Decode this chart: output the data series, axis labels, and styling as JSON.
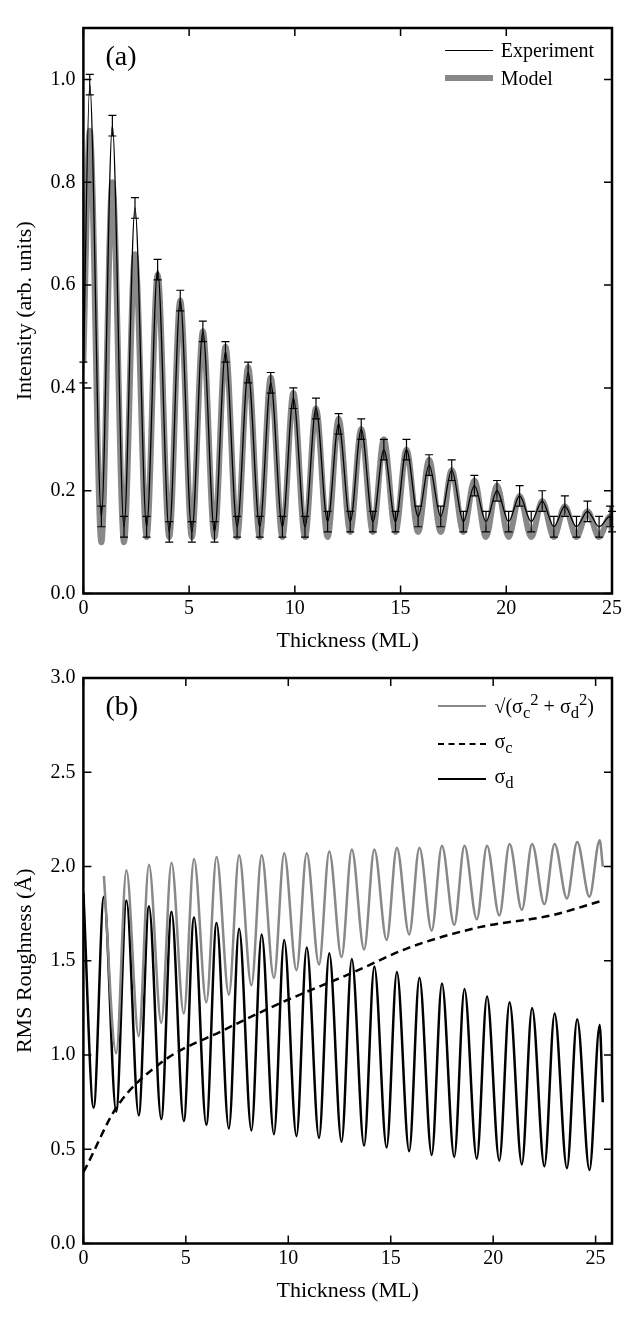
{
  "chart_data": [
    {
      "type": "line",
      "annotations": [
        "(a)"
      ],
      "xlabel": "Thickness (ML)",
      "ylabel": "Intensity (arb. units)",
      "xlim": [
        0,
        25
      ],
      "xticks": [
        0,
        5,
        10,
        15,
        20,
        25
      ],
      "ylim": [
        0,
        1.1
      ],
      "yticks": [
        {
          "value": 0,
          "label": "0.0"
        },
        {
          "value": 0.2,
          "label": "0.2"
        },
        {
          "value": 0.4,
          "label": "0.4"
        },
        {
          "value": 0.6,
          "label": "0.6"
        },
        {
          "value": 0.8,
          "label": "0.8"
        },
        {
          "value": 1,
          "label": "1.0"
        }
      ],
      "legend": "top right",
      "marker": "none",
      "x": [
        0,
        0.3,
        0.85,
        1.37,
        1.92,
        2.44,
        2.99,
        3.51,
        4.06,
        4.58,
        5.13,
        5.65,
        6.2,
        6.72,
        7.27,
        7.79,
        8.34,
        8.86,
        9.41,
        9.93,
        10.48,
        11.0,
        11.55,
        12.07,
        12.62,
        13.14,
        13.69,
        14.21,
        14.76,
        15.28,
        15.83,
        16.35,
        16.9,
        17.42,
        17.97,
        18.49,
        19.04,
        19.56,
        20.11,
        20.63,
        21.18,
        21.7,
        22.25,
        22.77,
        23.32,
        23.84,
        24.39,
        24.91,
        25
      ],
      "series": [
        {
          "name": "Experiment",
          "color": "#000000",
          "values": [
            0.43,
            0.99,
            0.15,
            0.91,
            0.13,
            0.75,
            0.13,
            0.63,
            0.12,
            0.57,
            0.12,
            0.51,
            0.12,
            0.47,
            0.13,
            0.43,
            0.13,
            0.41,
            0.13,
            0.38,
            0.13,
            0.36,
            0.14,
            0.33,
            0.14,
            0.32,
            0.14,
            0.28,
            0.14,
            0.28,
            0.15,
            0.25,
            0.15,
            0.24,
            0.14,
            0.21,
            0.14,
            0.2,
            0.14,
            0.19,
            0.14,
            0.18,
            0.13,
            0.17,
            0.13,
            0.16,
            0.13,
            0.15,
            0.14
          ],
          "errors": [
            0.02,
            0.02,
            0.02,
            0.02,
            0.02,
            0.02,
            0.02,
            0.02,
            0.02,
            0.02,
            0.02,
            0.02,
            0.02,
            0.02,
            0.02,
            0.02,
            0.02,
            0.02,
            0.02,
            0.02,
            0.02,
            0.02,
            0.02,
            0.02,
            0.02,
            0.02,
            0.02,
            0.02,
            0.02,
            0.02,
            0.02,
            0.02,
            0.02,
            0.02,
            0.02,
            0.02,
            0.02,
            0.02,
            0.02,
            0.02,
            0.02,
            0.02,
            0.02,
            0.02,
            0.02,
            0.02,
            0.02,
            0.02,
            0.02
          ]
        },
        {
          "name": "Model",
          "color": "#888888",
          "values": [
            0.45,
            0.9,
            0.1,
            0.8,
            0.1,
            0.66,
            0.11,
            0.62,
            0.11,
            0.57,
            0.11,
            0.51,
            0.11,
            0.48,
            0.11,
            0.44,
            0.11,
            0.42,
            0.11,
            0.39,
            0.11,
            0.36,
            0.11,
            0.34,
            0.12,
            0.32,
            0.12,
            0.3,
            0.12,
            0.28,
            0.12,
            0.26,
            0.12,
            0.24,
            0.12,
            0.22,
            0.11,
            0.21,
            0.11,
            0.19,
            0.11,
            0.18,
            0.11,
            0.17,
            0.11,
            0.16,
            0.11,
            0.15,
            0.12
          ]
        }
      ]
    },
    {
      "type": "line",
      "annotations": [
        "(b)"
      ],
      "xlabel": "Thickness (ML)",
      "ylabel": "RMS Roughness (Å)",
      "xlim": [
        0,
        25.8
      ],
      "xticks": [
        0,
        5,
        10,
        15,
        20,
        25
      ],
      "ylim": [
        0,
        3
      ],
      "yticks": [
        {
          "value": 0,
          "label": "0.0"
        },
        {
          "value": 0.5,
          "label": "0.5"
        },
        {
          "value": 1,
          "label": "1.0"
        },
        {
          "value": 1.5,
          "label": "1.5"
        },
        {
          "value": 2,
          "label": "2.0"
        },
        {
          "value": 2.5,
          "label": "2.5"
        },
        {
          "value": 3,
          "label": "3.0"
        }
      ],
      "legend": "top right",
      "marker": "none",
      "series": [
        {
          "name": "√(σ$_{c}$$^{2}$ + σ$_{d}$$^{2}$)",
          "color": "#888888",
          "x": [
            1.0,
            1.6,
            2.1,
            2.7,
            3.2,
            3.8,
            4.3,
            4.9,
            5.4,
            6.0,
            6.5,
            7.1,
            7.6,
            8.2,
            8.7,
            9.3,
            9.8,
            10.4,
            10.9,
            11.5,
            12.0,
            12.6,
            13.1,
            13.7,
            14.2,
            14.8,
            15.3,
            15.9,
            16.4,
            17.0,
            17.5,
            18.1,
            18.6,
            19.2,
            19.7,
            20.3,
            20.8,
            21.4,
            21.9,
            22.5,
            23.0,
            23.6,
            24.1,
            24.7,
            25.2,
            25.35
          ],
          "values": [
            1.95,
            1.01,
            1.98,
            1.1,
            2.01,
            1.17,
            2.02,
            1.22,
            2.04,
            1.28,
            2.05,
            1.32,
            2.06,
            1.37,
            2.06,
            1.41,
            2.07,
            1.45,
            2.07,
            1.48,
            2.08,
            1.52,
            2.09,
            1.56,
            2.09,
            1.61,
            2.1,
            1.64,
            2.1,
            1.66,
            2.11,
            1.69,
            2.11,
            1.72,
            2.11,
            1.74,
            2.12,
            1.77,
            2.12,
            1.8,
            2.12,
            1.83,
            2.13,
            1.84,
            2.14,
            2.0
          ]
        },
        {
          "name": "σ$_{c}$",
          "color": "#000000",
          "line_style": "dashed",
          "x": [
            0,
            0.15,
            1.6,
            3.8,
            6.8,
            9.5,
            13.2,
            15.9,
            19.4,
            22.8,
            25.35
          ],
          "values": [
            0.38,
            0.41,
            0.72,
            0.96,
            1.13,
            1.27,
            1.44,
            1.57,
            1.68,
            1.74,
            1.82
          ]
        },
        {
          "name": "σ$_{d}$",
          "color": "#000000",
          "x": [
            0,
            0.5,
            1.0,
            1.6,
            2.1,
            2.7,
            3.2,
            3.8,
            4.3,
            4.9,
            5.4,
            6.0,
            6.5,
            7.1,
            7.6,
            8.2,
            8.7,
            9.3,
            9.8,
            10.4,
            10.9,
            11.5,
            12.0,
            12.6,
            13.1,
            13.7,
            14.2,
            14.8,
            15.3,
            15.9,
            16.4,
            17.0,
            17.5,
            18.1,
            18.6,
            19.2,
            19.7,
            20.3,
            20.8,
            21.4,
            21.9,
            22.5,
            23.0,
            23.6,
            24.1,
            24.7,
            25.2,
            25.35
          ],
          "values": [
            1.86,
            0.72,
            1.84,
            0.7,
            1.82,
            0.68,
            1.79,
            0.66,
            1.76,
            0.65,
            1.73,
            0.63,
            1.7,
            0.61,
            1.67,
            0.6,
            1.64,
            0.58,
            1.61,
            0.57,
            1.57,
            0.56,
            1.54,
            0.54,
            1.51,
            0.52,
            1.47,
            0.51,
            1.44,
            0.49,
            1.41,
            0.47,
            1.38,
            0.46,
            1.35,
            0.45,
            1.31,
            0.44,
            1.28,
            0.42,
            1.25,
            0.41,
            1.22,
            0.4,
            1.19,
            0.39,
            1.16,
            0.75
          ]
        }
      ]
    }
  ]
}
